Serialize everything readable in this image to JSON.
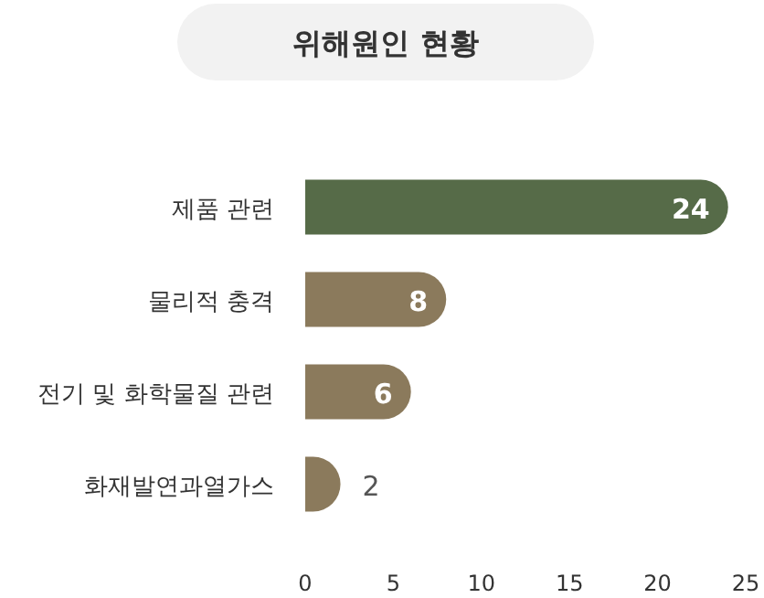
{
  "chart_data": {
    "type": "bar",
    "orientation": "horizontal",
    "title": "위해원인 현황",
    "categories": [
      "제품 관련",
      "물리적 충격",
      "전기 및 화학물질 관련",
      "화재발연과열가스"
    ],
    "values": [
      24,
      8,
      6,
      2
    ],
    "colors": [
      "#566b48",
      "#8b7a5c",
      "#8b7a5c",
      "#8b7a5c"
    ],
    "xlim": [
      0,
      25
    ],
    "xticks": [
      0,
      5,
      10,
      15,
      20,
      25
    ],
    "data_labels": true
  }
}
